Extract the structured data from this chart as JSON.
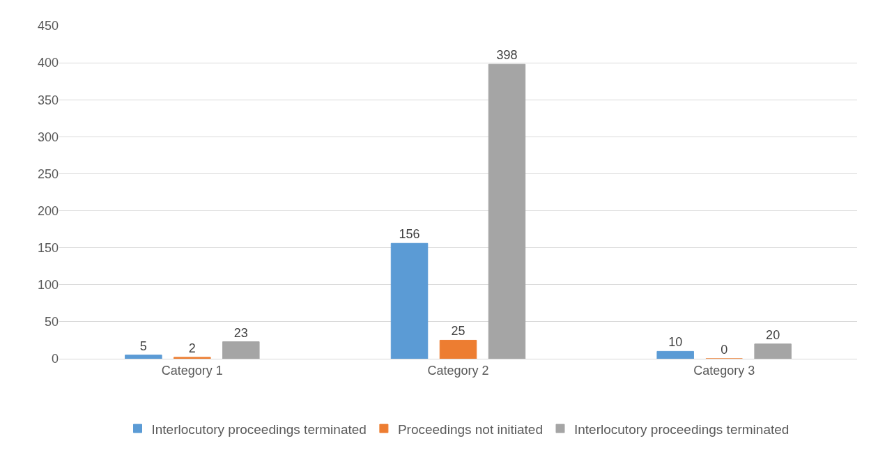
{
  "chart_data": {
    "type": "bar",
    "categories": [
      "Category 1",
      "Category 2",
      "Category 3"
    ],
    "series": [
      {
        "name": "Interlocutory proceedings terminated",
        "color": "#5b9bd5",
        "values": [
          5,
          156,
          10
        ]
      },
      {
        "name": "Proceedings not initiated",
        "color": "#ed7d31",
        "values": [
          2,
          25,
          0
        ]
      },
      {
        "name": "Interlocutory proceedings terminated",
        "color": "#a5a5a5",
        "values": [
          23,
          398,
          20
        ]
      }
    ],
    "ylim": [
      0,
      450
    ],
    "yticks": [
      0,
      50,
      100,
      150,
      200,
      250,
      300,
      350,
      400,
      450
    ],
    "grid": "y",
    "legend": "bottom",
    "data_labels": true
  }
}
